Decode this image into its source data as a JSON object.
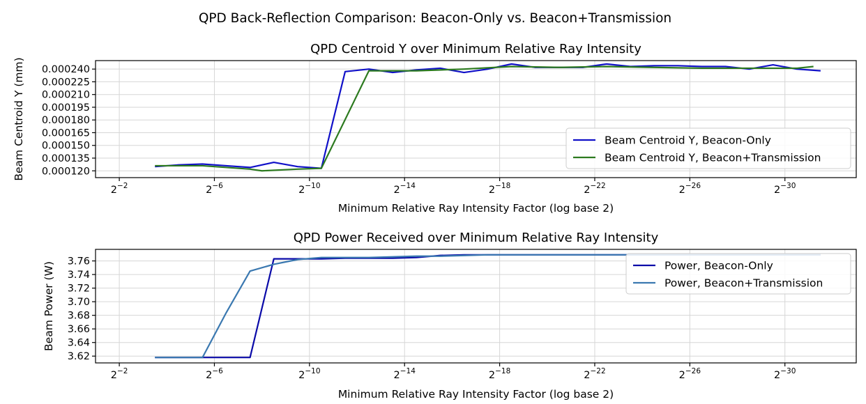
{
  "suptitle": "QPD Back-Reflection Comparison: Beacon-Only vs. Beacon+Transmission",
  "chart_data": [
    {
      "type": "line",
      "title": "QPD Centroid Y over Minimum Relative Ray Intensity",
      "xlabel": "Minimum Relative Ray Intensity Factor (log base 2)",
      "ylabel": "Beam Centroid Y (mm)",
      "x_unit": "exponent of 2 (log2 of intensity factor)",
      "xlim": [
        -1,
        -33
      ],
      "ylim": [
        0.000112,
        0.00025
      ],
      "grid": true,
      "legend_position": "lower-right",
      "xticks": [
        {
          "exp": -2,
          "base": "2",
          "power": "−2"
        },
        {
          "exp": -6,
          "base": "2",
          "power": "−6"
        },
        {
          "exp": -10,
          "base": "2",
          "power": "−10"
        },
        {
          "exp": -14,
          "base": "2",
          "power": "−14"
        },
        {
          "exp": -18,
          "base": "2",
          "power": "−18"
        },
        {
          "exp": -22,
          "base": "2",
          "power": "−22"
        },
        {
          "exp": -26,
          "base": "2",
          "power": "−26"
        },
        {
          "exp": -30,
          "base": "2",
          "power": "−30"
        }
      ],
      "yticks": [
        {
          "value": 0.00012,
          "label": "0.000120"
        },
        {
          "value": 0.000135,
          "label": "0.000135"
        },
        {
          "value": 0.00015,
          "label": "0.000150"
        },
        {
          "value": 0.000165,
          "label": "0.000165"
        },
        {
          "value": 0.00018,
          "label": "0.000180"
        },
        {
          "value": 0.000195,
          "label": "0.000195"
        },
        {
          "value": 0.00021,
          "label": "0.000210"
        },
        {
          "value": 0.000225,
          "label": "0.000225"
        },
        {
          "value": 0.00024,
          "label": "0.000240"
        }
      ],
      "series": [
        {
          "name": "Beam Centroid Y, Beacon-Only",
          "color": "#1010c8",
          "x": [
            -3.5,
            -4.5,
            -5.5,
            -6.5,
            -7.5,
            -8.5,
            -9.5,
            -10.5,
            -11.5,
            -12.5,
            -13.5,
            -14.5,
            -15.5,
            -16.5,
            -17.5,
            -18.5,
            -19.5,
            -20.5,
            -21.5,
            -22.5,
            -23.5,
            -24.5,
            -25.5,
            -26.5,
            -27.5,
            -28.5,
            -29.5,
            -30.5,
            -31.5
          ],
          "y": [
            0.000125,
            0.000127,
            0.000128,
            0.000126,
            0.000124,
            0.00013,
            0.000125,
            0.000123,
            0.000237,
            0.00024,
            0.000236,
            0.000239,
            0.000241,
            0.000236,
            0.00024,
            0.000246,
            0.000242,
            0.000242,
            0.000242,
            0.000246,
            0.000243,
            0.000244,
            0.000244,
            0.000243,
            0.000243,
            0.00024,
            0.000245,
            0.00024,
            0.000238
          ]
        },
        {
          "name": "Beam Centroid Y, Beacon+Transmission",
          "color": "#2c7a1f",
          "x": [
            -3.5,
            -5.5,
            -7.5,
            -8,
            -9.5,
            -10.5,
            -12.5,
            -14.5,
            -16.5,
            -18.5,
            -20.5,
            -22.5,
            -24.5,
            -26.5,
            -28.5,
            -30.5,
            -31.2
          ],
          "y": [
            0.000126,
            0.000126,
            0.000122,
            0.00012,
            0.000122,
            0.000123,
            0.000238,
            0.000238,
            0.00024,
            0.000243,
            0.000242,
            0.000243,
            0.000242,
            0.000241,
            0.000241,
            0.000241,
            0.000243
          ]
        }
      ]
    },
    {
      "type": "line",
      "title": "QPD Power Received over Minimum Relative Ray Intensity",
      "xlabel": "Minimum Relative Ray Intensity Factor (log base 2)",
      "ylabel": "Beam Power (W)",
      "x_unit": "exponent of 2 (log2 of intensity factor)",
      "xlim": [
        -1,
        -33
      ],
      "ylim": [
        3.61,
        3.777
      ],
      "grid": true,
      "legend_position": "upper-right",
      "xticks": [
        {
          "exp": -2,
          "base": "2",
          "power": "−2"
        },
        {
          "exp": -6,
          "base": "2",
          "power": "−6"
        },
        {
          "exp": -10,
          "base": "2",
          "power": "−10"
        },
        {
          "exp": -14,
          "base": "2",
          "power": "−14"
        },
        {
          "exp": -18,
          "base": "2",
          "power": "−18"
        },
        {
          "exp": -22,
          "base": "2",
          "power": "−22"
        },
        {
          "exp": -26,
          "base": "2",
          "power": "−26"
        },
        {
          "exp": -30,
          "base": "2",
          "power": "−30"
        }
      ],
      "yticks": [
        {
          "value": 3.62,
          "label": "3.62"
        },
        {
          "value": 3.64,
          "label": "3.64"
        },
        {
          "value": 3.66,
          "label": "3.66"
        },
        {
          "value": 3.68,
          "label": "3.68"
        },
        {
          "value": 3.7,
          "label": "3.70"
        },
        {
          "value": 3.72,
          "label": "3.72"
        },
        {
          "value": 3.74,
          "label": "3.74"
        },
        {
          "value": 3.76,
          "label": "3.76"
        }
      ],
      "series": [
        {
          "name": "Power, Beacon-Only",
          "color": "#0a0aa8",
          "x": [
            -3.5,
            -4.5,
            -5.5,
            -6.5,
            -7.5,
            -8.5,
            -9.5,
            -10.5,
            -11.5,
            -12.5,
            -13.5,
            -14.5,
            -15.5,
            -16.5,
            -17.5,
            -18.5,
            -19.5,
            -20.5,
            -21.5,
            -22.5,
            -23.5,
            -24.5,
            -25.5,
            -26.5,
            -27.5,
            -28.5,
            -29.5,
            -30.5,
            -31.5
          ],
          "y": [
            3.618,
            3.618,
            3.618,
            3.618,
            3.618,
            3.763,
            3.763,
            3.763,
            3.764,
            3.764,
            3.764,
            3.765,
            3.768,
            3.769,
            3.769,
            3.769,
            3.769,
            3.769,
            3.769,
            3.769,
            3.769,
            3.769,
            3.769,
            3.769,
            3.769,
            3.769,
            3.769,
            3.769,
            3.769
          ]
        },
        {
          "name": "Power, Beacon+Transmission",
          "color": "#3a78b0",
          "x": [
            -3.5,
            -4.5,
            -5.5,
            -6.5,
            -7.5,
            -8.5,
            -9.5,
            -10.5,
            -11.5,
            -12.5,
            -13.5,
            -14.5,
            -15.5,
            -16.5,
            -17.5,
            -18.5,
            -19.5,
            -20.5,
            -21.5,
            -22.5,
            -23.5,
            -24.5,
            -25.5,
            -26.5,
            -27.5,
            -28.5,
            -29.5,
            -30.5,
            -31.5
          ],
          "y": [
            3.618,
            3.618,
            3.618,
            3.684,
            3.745,
            3.755,
            3.762,
            3.765,
            3.765,
            3.765,
            3.766,
            3.767,
            3.767,
            3.768,
            3.769,
            3.769,
            3.769,
            3.769,
            3.769,
            3.769,
            3.769,
            3.769,
            3.769,
            3.769,
            3.769,
            3.769,
            3.769,
            3.769,
            3.769
          ]
        }
      ]
    }
  ]
}
